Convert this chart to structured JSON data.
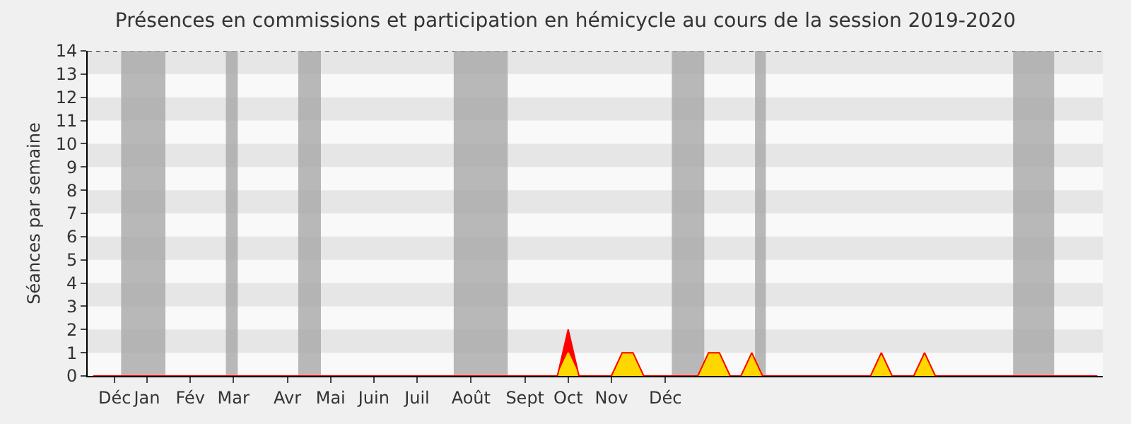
{
  "chart_data": {
    "type": "area",
    "stacked": true,
    "title": "Présences en commissions et participation en hémicycle au cours de la session 2019-2020",
    "ylabel": "Séances par semaine",
    "categories": [
      null,
      null,
      "Déc",
      null,
      null,
      "Jan",
      null,
      null,
      null,
      "Fév",
      null,
      null,
      null,
      "Mar",
      null,
      null,
      null,
      null,
      "Avr",
      null,
      null,
      null,
      "Mai",
      null,
      null,
      null,
      "Juin",
      null,
      null,
      null,
      "Juil",
      null,
      null,
      null,
      null,
      "Août",
      null,
      null,
      null,
      null,
      "Sept",
      null,
      null,
      null,
      "Oct",
      null,
      null,
      null,
      "Nov",
      null,
      null,
      null,
      null,
      "Déc",
      null,
      null,
      null,
      null,
      null,
      null,
      null,
      null,
      null,
      null,
      null,
      null,
      null,
      null,
      null,
      null,
      null,
      null,
      null,
      null,
      null,
      null,
      null,
      null,
      null,
      null,
      null,
      null,
      null,
      null,
      null,
      null,
      null,
      null,
      null,
      null,
      null,
      null,
      null,
      null
    ],
    "series": [
      {
        "color": "#ffd700",
        "values": [
          0,
          0,
          0,
          0,
          0,
          0,
          0,
          0,
          0,
          0,
          0,
          0,
          0,
          0,
          0,
          0,
          0,
          0,
          0,
          0,
          0,
          0,
          0,
          0,
          0,
          0,
          0,
          0,
          0,
          0,
          0,
          0,
          0,
          0,
          0,
          0,
          0,
          0,
          0,
          0,
          0,
          0,
          0,
          0,
          1,
          0,
          0,
          0,
          0,
          1,
          1,
          0,
          0,
          0,
          0,
          0,
          0,
          1,
          1,
          0,
          0,
          1,
          0,
          0,
          0,
          0,
          0,
          0,
          0,
          0,
          0,
          0,
          0,
          1,
          0,
          0,
          0,
          1,
          0,
          0,
          0,
          0,
          0,
          0,
          0,
          0,
          0,
          0,
          0,
          0,
          0,
          0,
          0,
          0
        ]
      },
      {
        "color": "#ff0000",
        "values": [
          0,
          0,
          0,
          0,
          0,
          0,
          0,
          0,
          0,
          0,
          0,
          0,
          0,
          0,
          0,
          0,
          0,
          0,
          0,
          0,
          0,
          0,
          0,
          0,
          0,
          0,
          0,
          0,
          0,
          0,
          0,
          0,
          0,
          0,
          0,
          0,
          0,
          0,
          0,
          0,
          0,
          0,
          0,
          0,
          1,
          0,
          0,
          0,
          0,
          0,
          0,
          0,
          0,
          0,
          0,
          0,
          0,
          0,
          0,
          0,
          0,
          0,
          0,
          0,
          0,
          0,
          0,
          0,
          0,
          0,
          0,
          0,
          0,
          0,
          0,
          0,
          0,
          0,
          0,
          0,
          0,
          0,
          0,
          0,
          0,
          0,
          0,
          0,
          0,
          0,
          0,
          0,
          0,
          0
        ]
      }
    ],
    "ylim": [
      0,
      14
    ],
    "yticks": [
      0,
      1,
      2,
      3,
      4,
      5,
      6,
      7,
      8,
      9,
      10,
      11,
      12,
      13,
      14
    ],
    "grid": false
  }
}
